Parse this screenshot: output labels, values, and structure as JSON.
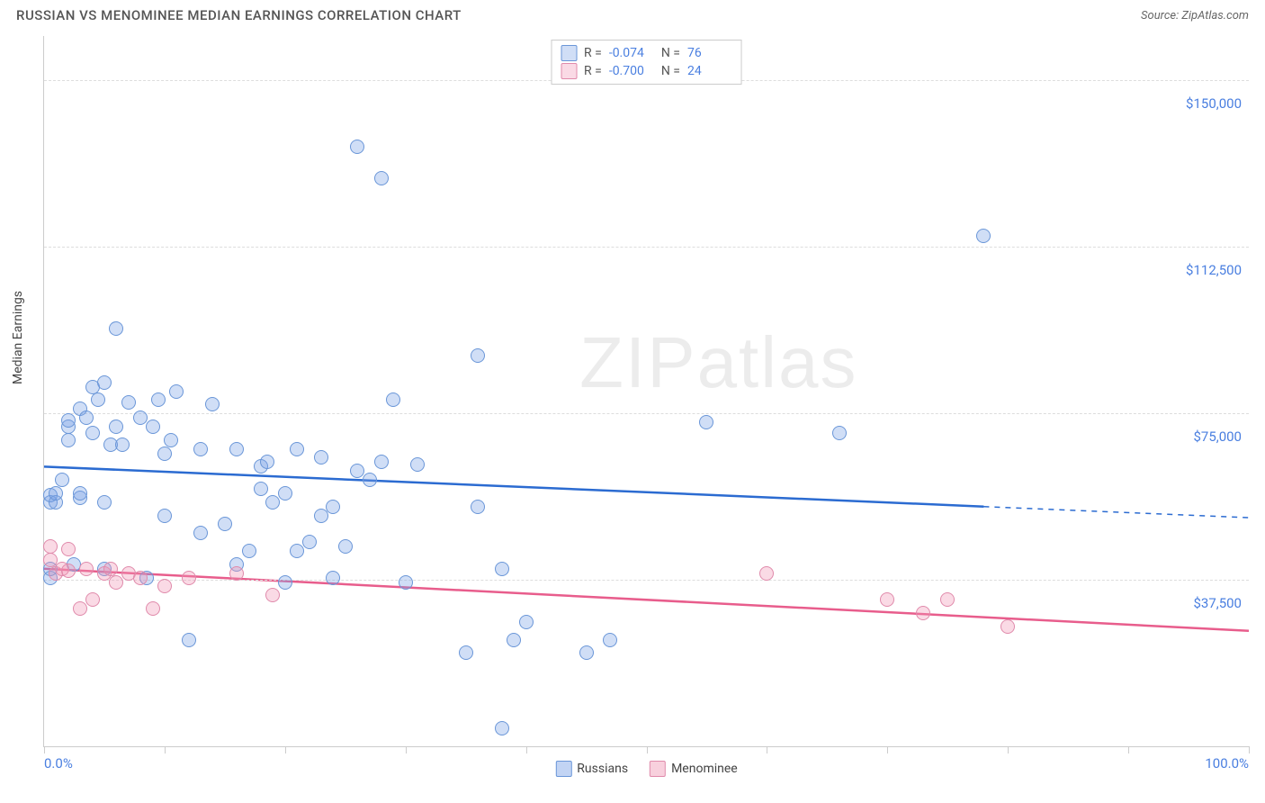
{
  "title": "RUSSIAN VS MENOMINEE MEDIAN EARNINGS CORRELATION CHART",
  "source": "Source: ZipAtlas.com",
  "watermark": "ZIPatlas",
  "ylabel": "Median Earnings",
  "xaxis": {
    "min": 0,
    "max": 100,
    "ticks_at": [
      0,
      10,
      20,
      30,
      40,
      50,
      60,
      70,
      80,
      90,
      100
    ],
    "label_left": "0.0%",
    "label_right": "100.0%"
  },
  "yaxis": {
    "min": 0,
    "max": 160000,
    "gridlines": [
      {
        "v": 37500,
        "label": "$37,500"
      },
      {
        "v": 75000,
        "label": "$75,000"
      },
      {
        "v": 112500,
        "label": "$112,500"
      },
      {
        "v": 150000,
        "label": "$150,000"
      }
    ]
  },
  "series": [
    {
      "key": "russians",
      "label": "Russians",
      "fill": "rgba(120,160,230,0.35)",
      "stroke": "#6a96d8",
      "line_color": "#2b6bd1",
      "marker_radius": 8,
      "R_label": "R =",
      "R": "-0.074",
      "N_label": "N =",
      "N": "76",
      "trend": {
        "x1": 0,
        "y1": 63000,
        "x2_solid": 78,
        "y2_solid": 54000,
        "x2_dash": 100,
        "y2_dash": 51500
      },
      "points": [
        [
          0.5,
          38000
        ],
        [
          0.5,
          40000
        ],
        [
          0.5,
          55000
        ],
        [
          0.5,
          56500
        ],
        [
          1,
          55000
        ],
        [
          1,
          57000
        ],
        [
          1.5,
          60000
        ],
        [
          2,
          69000
        ],
        [
          2,
          72000
        ],
        [
          2,
          73500
        ],
        [
          2.5,
          41000
        ],
        [
          3,
          56000
        ],
        [
          3,
          57000
        ],
        [
          3,
          76000
        ],
        [
          3.5,
          74000
        ],
        [
          4,
          70500
        ],
        [
          4,
          81000
        ],
        [
          4.5,
          78000
        ],
        [
          5,
          40000
        ],
        [
          5,
          55000
        ],
        [
          5,
          82000
        ],
        [
          5.5,
          68000
        ],
        [
          6,
          94000
        ],
        [
          6,
          72000
        ],
        [
          6.5,
          68000
        ],
        [
          7,
          77500
        ],
        [
          8,
          74000
        ],
        [
          8.5,
          38000
        ],
        [
          9,
          72000
        ],
        [
          9.5,
          78000
        ],
        [
          10,
          66000
        ],
        [
          10,
          52000
        ],
        [
          10.5,
          69000
        ],
        [
          11,
          80000
        ],
        [
          12,
          24000
        ],
        [
          13,
          67000
        ],
        [
          13,
          48000
        ],
        [
          14,
          77000
        ],
        [
          15,
          50000
        ],
        [
          16,
          67000
        ],
        [
          16,
          41000
        ],
        [
          17,
          44000
        ],
        [
          18,
          63000
        ],
        [
          18,
          58000
        ],
        [
          18.5,
          64000
        ],
        [
          19,
          55000
        ],
        [
          20,
          57000
        ],
        [
          20,
          37000
        ],
        [
          21,
          67000
        ],
        [
          21,
          44000
        ],
        [
          22,
          46000
        ],
        [
          23,
          52000
        ],
        [
          23,
          65000
        ],
        [
          24,
          54000
        ],
        [
          24,
          38000
        ],
        [
          25,
          45000
        ],
        [
          26,
          62000
        ],
        [
          26,
          135000
        ],
        [
          27,
          60000
        ],
        [
          28,
          64000
        ],
        [
          28,
          128000
        ],
        [
          29,
          78000
        ],
        [
          30,
          37000
        ],
        [
          31,
          63500
        ],
        [
          35,
          21000
        ],
        [
          36,
          88000
        ],
        [
          36,
          54000
        ],
        [
          38,
          40000
        ],
        [
          39,
          24000
        ],
        [
          40,
          28000
        ],
        [
          45,
          21000
        ],
        [
          47,
          24000
        ],
        [
          55,
          73000
        ],
        [
          66,
          70500
        ],
        [
          78,
          115000
        ],
        [
          38,
          4000
        ]
      ]
    },
    {
      "key": "menominee",
      "label": "Menominee",
      "fill": "rgba(240,150,180,0.35)",
      "stroke": "#e08aab",
      "line_color": "#e85d8c",
      "marker_radius": 8,
      "R_label": "R =",
      "R": "-0.700",
      "N_label": "N =",
      "N": "24",
      "trend": {
        "x1": 0,
        "y1": 40000,
        "x2_solid": 100,
        "y2_solid": 26000,
        "x2_dash": 100,
        "y2_dash": 26000
      },
      "points": [
        [
          0.5,
          42000
        ],
        [
          0.5,
          45000
        ],
        [
          1,
          39000
        ],
        [
          1.5,
          40000
        ],
        [
          2,
          39500
        ],
        [
          2,
          44500
        ],
        [
          3,
          31000
        ],
        [
          3.5,
          40000
        ],
        [
          4,
          33000
        ],
        [
          5,
          39000
        ],
        [
          5.5,
          40000
        ],
        [
          6,
          37000
        ],
        [
          7,
          39000
        ],
        [
          8,
          38000
        ],
        [
          9,
          31000
        ],
        [
          10,
          36000
        ],
        [
          12,
          38000
        ],
        [
          16,
          39000
        ],
        [
          19,
          34000
        ],
        [
          60,
          39000
        ],
        [
          70,
          33000
        ],
        [
          73,
          30000
        ],
        [
          75,
          33000
        ],
        [
          80,
          27000
        ]
      ]
    }
  ],
  "legend_bottom": [
    {
      "color_fill": "rgba(120,160,230,0.45)",
      "color_stroke": "#6a96d8",
      "label": "Russians"
    },
    {
      "color_fill": "rgba(240,150,180,0.45)",
      "color_stroke": "#e08aab",
      "label": "Menominee"
    }
  ],
  "colors": {
    "axis_label": "#4a7fe0",
    "grid": "#dddddd",
    "text": "#555555"
  }
}
